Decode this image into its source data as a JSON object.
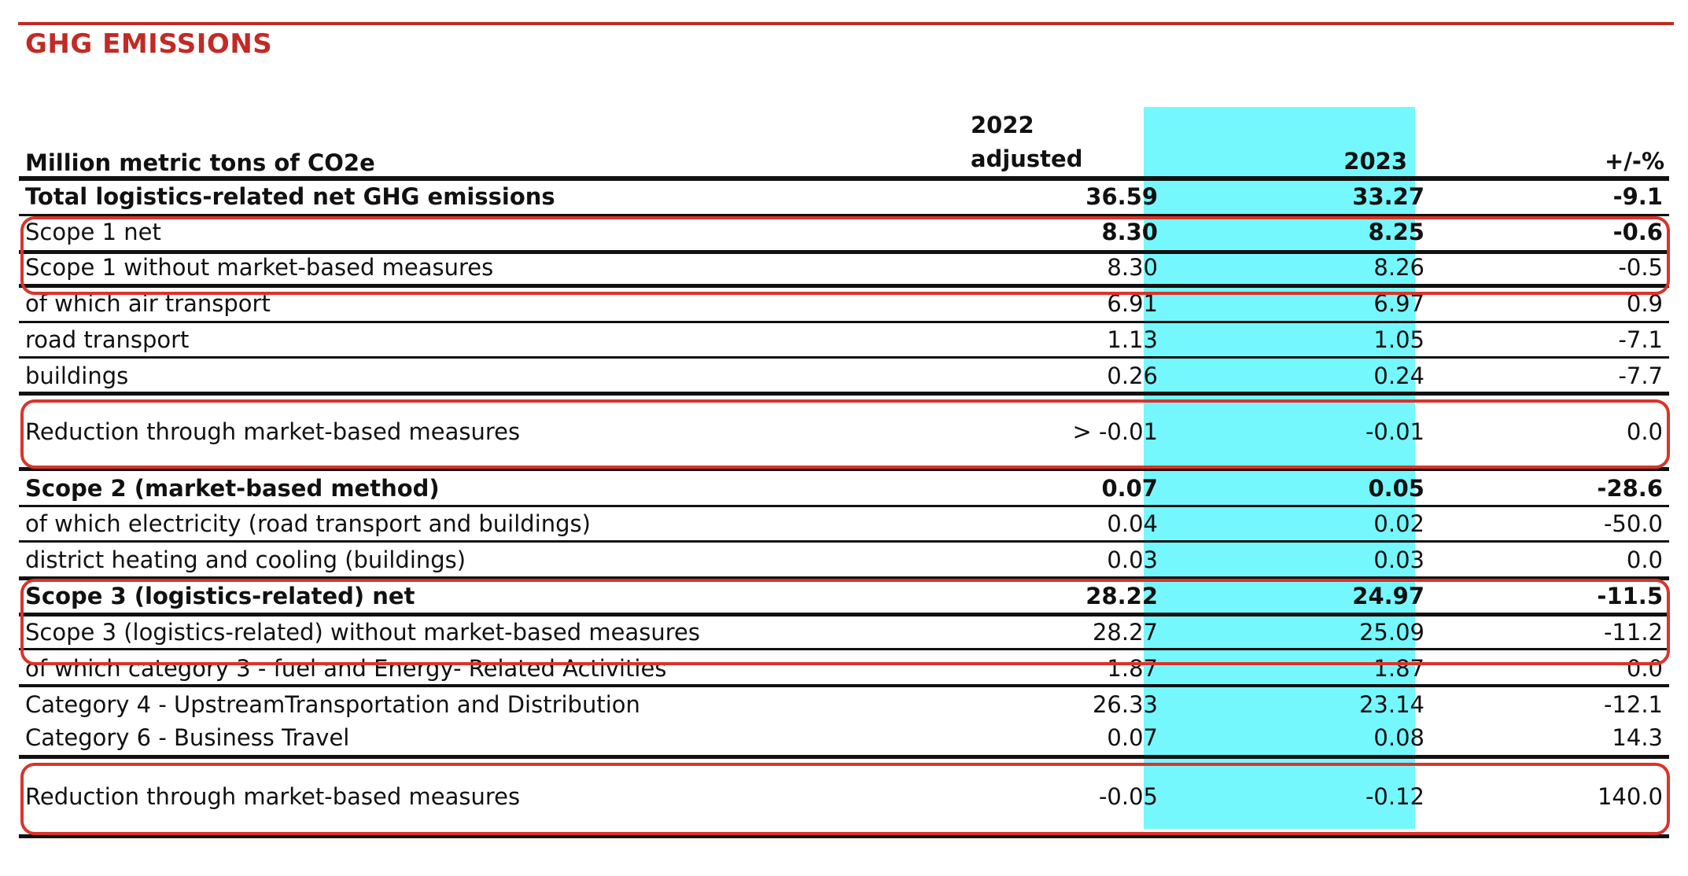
{
  "title": "GHG EMISSIONS",
  "header": {
    "unit_label": "Million metric tons of CO2e",
    "col_2022_line1": "2022",
    "col_2022_line2": "adjusted",
    "col_2023": "2023",
    "col_pct": "+/-%"
  },
  "rows": [
    {
      "label": "Total logistics-related net GHG emissions",
      "v2022": "36.59",
      "v2023": "33.27",
      "pct": "-9.1"
    },
    {
      "label": "Scope 1 net",
      "v2022": "8.30",
      "v2023": "8.25",
      "pct": "-0.6"
    },
    {
      "label": "Scope 1 without market-based measures",
      "v2022": "8.30",
      "v2023": "8.26",
      "pct": "-0.5"
    },
    {
      "label": "of which air transport",
      "v2022": "6.91",
      "v2023": "6.97",
      "pct": "0.9"
    },
    {
      "label": "road transport",
      "v2022": "1.13",
      "v2023": "1.05",
      "pct": "-7.1"
    },
    {
      "label": "buildings",
      "v2022": "0.26",
      "v2023": "0.24",
      "pct": "-7.7"
    },
    {
      "label": "Reduction through market-based measures",
      "v2022": "> -0.01",
      "v2023": "-0.01",
      "pct": "0.0"
    },
    {
      "label": "Scope 2 (market-based method)",
      "v2022": "0.07",
      "v2023": "0.05",
      "pct": "-28.6"
    },
    {
      "label": "of which electricity (road transport and buildings)",
      "v2022": "0.04",
      "v2023": "0.02",
      "pct": "-50.0"
    },
    {
      "label": "district heating and cooling (buildings)",
      "v2022": "0.03",
      "v2023": "0.03",
      "pct": "0.0"
    },
    {
      "label": "Scope 3 (logistics-related) net",
      "v2022": "28.22",
      "v2023": "24.97",
      "pct": "-11.5"
    },
    {
      "label": "Scope 3 (logistics-related) without market-based measures",
      "v2022": "28.27",
      "v2023": "25.09",
      "pct": "-11.2"
    },
    {
      "label": "of which category 3 - fuel and Energy- Related Activities",
      "v2022": "1.87",
      "v2023": "1.87",
      "pct": "0.0"
    },
    {
      "label": "Category 4 - UpstreamTransportation and Distribution",
      "v2022": "26.33",
      "v2023": "23.14",
      "pct": "-12.1"
    },
    {
      "label": "Category 6 - Business Travel",
      "v2022": "0.07",
      "v2023": "0.08",
      "pct": "14.3"
    },
    {
      "label": "Reduction through market-based measures",
      "v2022": "-0.05",
      "v2023": "-0.12",
      "pct": "140.0"
    }
  ],
  "colors": {
    "accent": "#c22a24",
    "highlight_column": "#75f8fd",
    "annotation_box": "#d9342b"
  }
}
